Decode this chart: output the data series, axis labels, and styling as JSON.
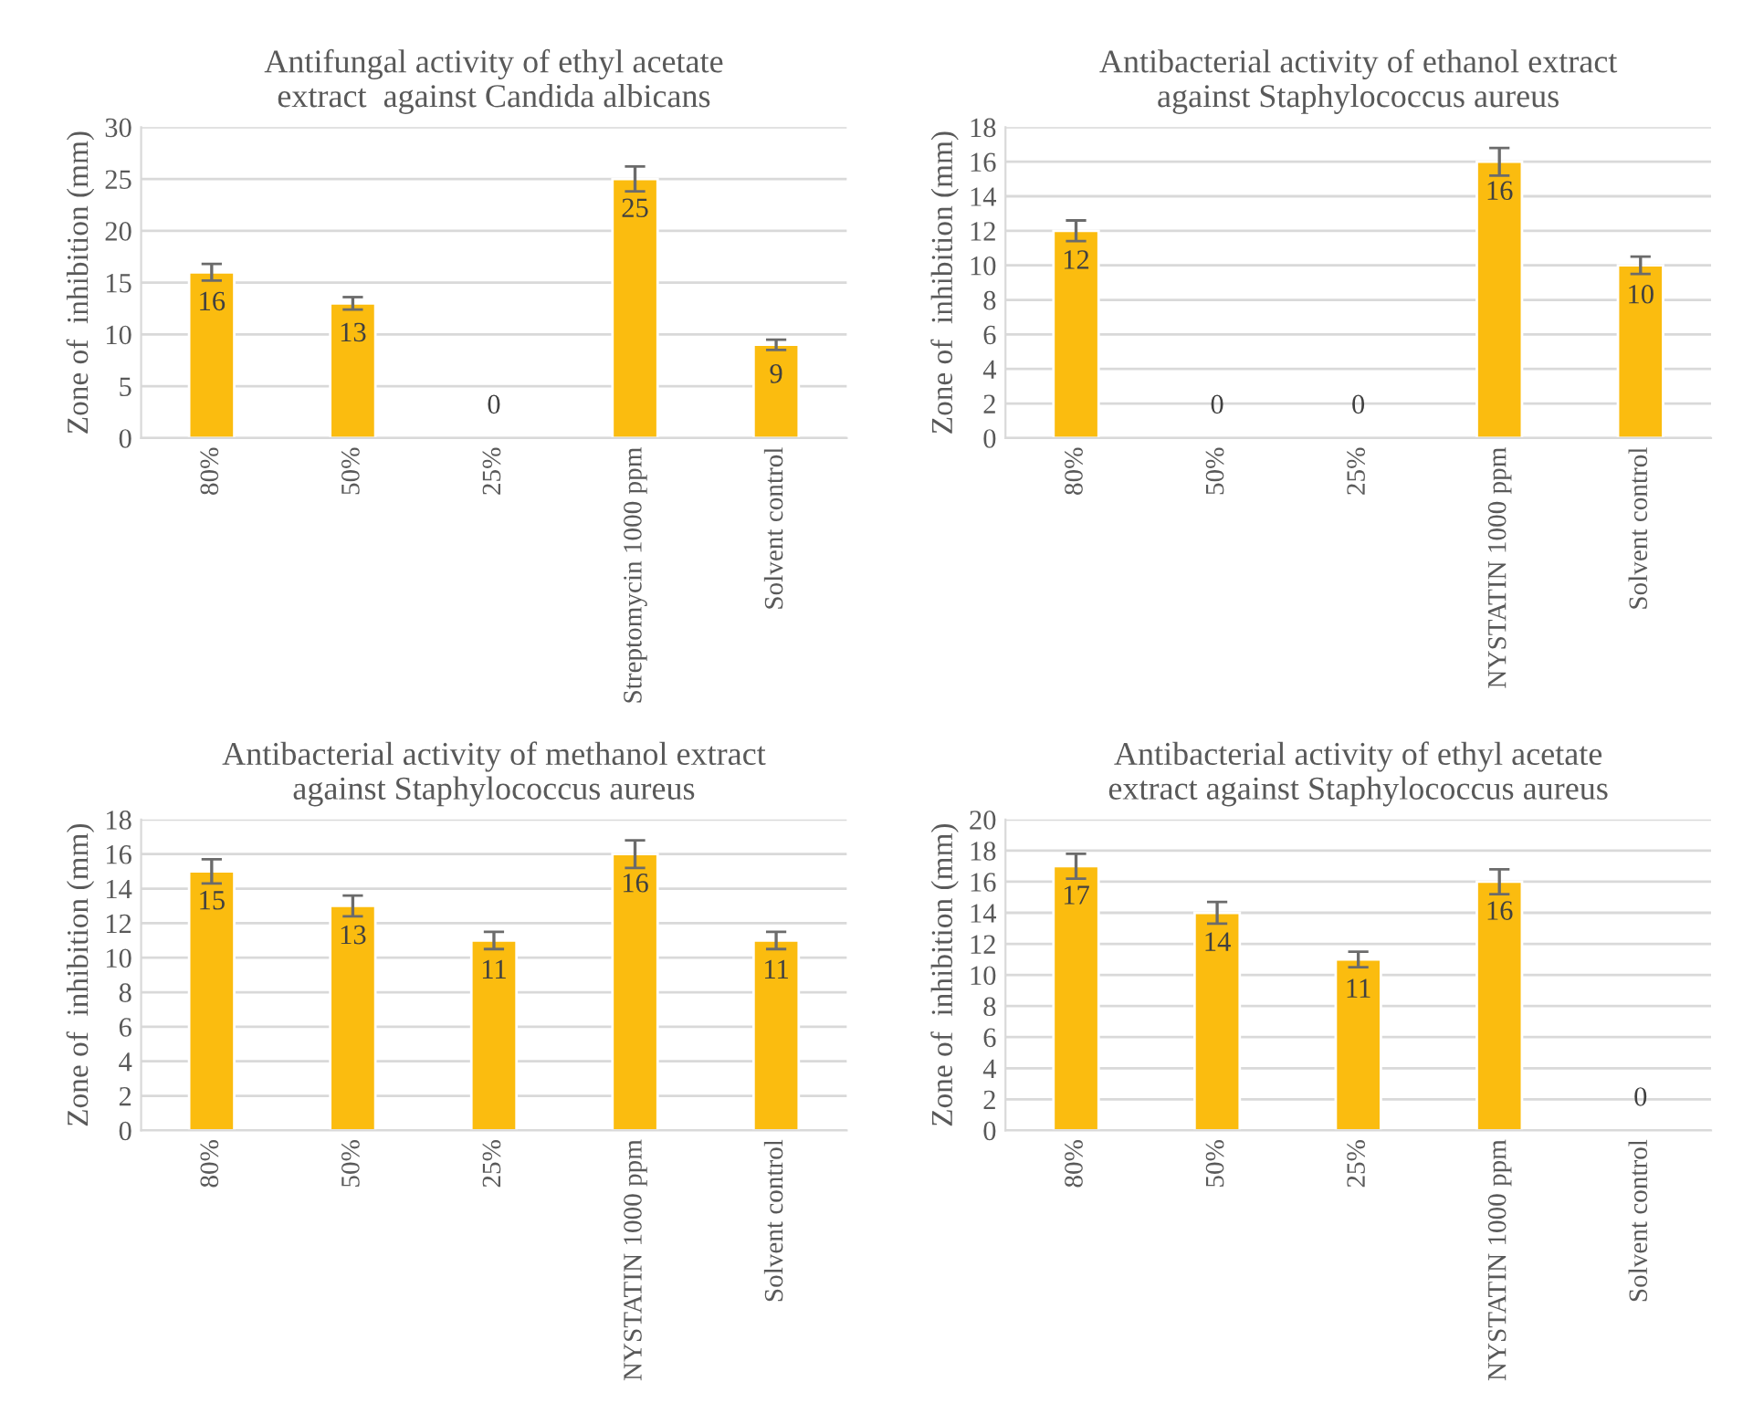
{
  "chart_data": [
    {
      "type": "bar",
      "title": "Antifungal activity of ethyl acetate\nextract  against Candida albicans",
      "ylabel": "Zone of  inhibition (mm)",
      "categories": [
        "80%",
        "50%",
        "25%",
        "Streptomycin 1000 ppm",
        "Solvent control"
      ],
      "values": [
        16,
        13,
        0,
        25,
        9
      ],
      "errors": [
        0.8,
        0.6,
        null,
        1.2,
        0.5
      ],
      "color": "#fbbc0f",
      "ylim": [
        0,
        30
      ],
      "yticks": [
        0,
        5,
        10,
        15,
        20,
        25,
        30
      ],
      "grid": "y",
      "data_labels": true
    },
    {
      "type": "bar",
      "title": "Antibacterial activity of ethanol extract\nagainst Staphylococcus aureus",
      "ylabel": "Zone of  inhibition (mm)",
      "categories": [
        "80%",
        "50%",
        "25%",
        "NYSTATIN 1000 ppm",
        "Solvent control"
      ],
      "values": [
        12,
        0,
        0,
        16,
        10
      ],
      "errors": [
        0.6,
        null,
        null,
        0.8,
        0.5
      ],
      "color": "#fbbc0f",
      "ylim": [
        0,
        18
      ],
      "yticks": [
        0,
        2,
        4,
        6,
        8,
        10,
        12,
        14,
        16,
        18
      ],
      "grid": "y",
      "data_labels": true
    },
    {
      "type": "bar",
      "title": "Antibacterial activity of methanol extract\nagainst Staphylococcus aureus",
      "ylabel": "Zone of  inhibition (mm)",
      "categories": [
        "80%",
        "50%",
        "25%",
        "NYSTATIN 1000 ppm",
        "Solvent control"
      ],
      "values": [
        15,
        13,
        11,
        16,
        11
      ],
      "errors": [
        0.7,
        0.6,
        0.5,
        0.8,
        0.5
      ],
      "color": "#fbbc0f",
      "ylim": [
        0,
        18
      ],
      "yticks": [
        0,
        2,
        4,
        6,
        8,
        10,
        12,
        14,
        16,
        18
      ],
      "grid": "y",
      "data_labels": true
    },
    {
      "type": "bar",
      "title": "Antibacterial activity of ethyl acetate\nextract against Staphylococcus aureus",
      "ylabel": "Zone of  inhibition (mm)",
      "categories": [
        "80%",
        "50%",
        "25%",
        "NYSTATIN 1000 ppm",
        "Solvent control"
      ],
      "values": [
        17,
        14,
        11,
        16,
        0
      ],
      "errors": [
        0.8,
        0.7,
        0.5,
        0.8,
        null
      ],
      "color": "#fbbc0f",
      "ylim": [
        0,
        20
      ],
      "yticks": [
        0,
        2,
        4,
        6,
        8,
        10,
        12,
        14,
        16,
        18,
        20
      ],
      "grid": "y",
      "data_labels": true
    }
  ]
}
